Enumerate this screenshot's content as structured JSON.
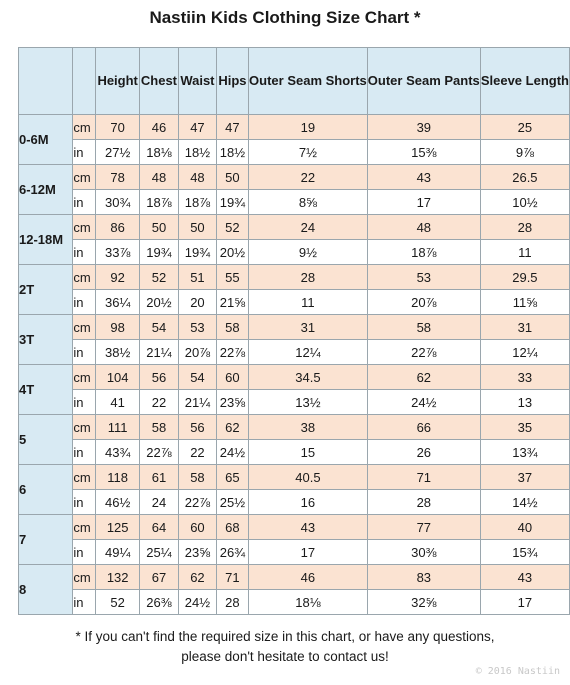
{
  "title": "Nastiin Kids Clothing Size Chart *",
  "columns": [
    "Height",
    "Chest",
    "Waist",
    "Hips",
    "Outer Seam Shorts",
    "Outer Seam Pants",
    "Sleeve Length"
  ],
  "rows": [
    {
      "size": "0-6M",
      "cm_label": "cm",
      "in_label": "in",
      "cm": [
        "70",
        "46",
        "47",
        "47",
        "19",
        "39",
        "25"
      ],
      "in": [
        "27½",
        "18⅛",
        "18½",
        "18½",
        "7½",
        "15⅜",
        "9⅞"
      ]
    },
    {
      "size": "6-12M",
      "cm_label": "cm",
      "in_label": "in",
      "cm": [
        "78",
        "48",
        "48",
        "50",
        "22",
        "43",
        "26.5"
      ],
      "in": [
        "30¾",
        "18⅞",
        "18⅞",
        "19¾",
        "8⅝",
        "17",
        "10½"
      ]
    },
    {
      "size": "12-18M",
      "cm_label": "cm",
      "in_label": "in",
      "cm": [
        "86",
        "50",
        "50",
        "52",
        "24",
        "48",
        "28"
      ],
      "in": [
        "33⅞",
        "19¾",
        "19¾",
        "20½",
        "9½",
        "18⅞",
        "11"
      ]
    },
    {
      "size": "2T",
      "cm_label": "cm",
      "in_label": "in",
      "cm": [
        "92",
        "52",
        "51",
        "55",
        "28",
        "53",
        "29.5"
      ],
      "in": [
        "36¼",
        "20½",
        "20",
        "21⅝",
        "11",
        "20⅞",
        "11⅝"
      ]
    },
    {
      "size": "3T",
      "cm_label": "cm",
      "in_label": "in",
      "cm": [
        "98",
        "54",
        "53",
        "58",
        "31",
        "58",
        "31"
      ],
      "in": [
        "38½",
        "21¼",
        "20⅞",
        "22⅞",
        "12¼",
        "22⅞",
        "12¼"
      ]
    },
    {
      "size": "4T",
      "cm_label": "cm",
      "in_label": "in",
      "cm": [
        "104",
        "56",
        "54",
        "60",
        "34.5",
        "62",
        "33"
      ],
      "in": [
        "41",
        "22",
        "21¼",
        "23⅝",
        "13½",
        "24½",
        "13"
      ]
    },
    {
      "size": "5",
      "cm_label": "cm",
      "in_label": "in",
      "cm": [
        "111",
        "58",
        "56",
        "62",
        "38",
        "66",
        "35"
      ],
      "in": [
        "43¾",
        "22⅞",
        "22",
        "24½",
        "15",
        "26",
        "13¾"
      ]
    },
    {
      "size": "6",
      "cm_label": "cm",
      "in_label": "in",
      "cm": [
        "118",
        "61",
        "58",
        "65",
        "40.5",
        "71",
        "37"
      ],
      "in": [
        "46½",
        "24",
        "22⅞",
        "25½",
        "16",
        "28",
        "14½"
      ]
    },
    {
      "size": "7",
      "cm_label": "cm",
      "in_label": "in",
      "cm": [
        "125",
        "64",
        "60",
        "68",
        "43",
        "77",
        "40"
      ],
      "in": [
        "49¼",
        "25¼",
        "23⅝",
        "26¾",
        "17",
        "30⅜",
        "15¾"
      ]
    },
    {
      "size": "8",
      "cm_label": "cm",
      "in_label": "in",
      "cm": [
        "132",
        "67",
        "62",
        "71",
        "46",
        "83",
        "43"
      ],
      "in": [
        "52",
        "26⅜",
        "24½",
        "28",
        "18⅛",
        "32⅝",
        "17"
      ]
    }
  ],
  "note_line1": "* If you can't find the required size in this chart, or have any questions,",
  "note_line2": "please don't hesitate to contact us!",
  "copyright": "© 2016 Nastiin",
  "colors": {
    "header_bg": "#d8eaf3",
    "cm_row_bg": "#fbe3d2",
    "in_row_bg": "#ffffff"
  }
}
